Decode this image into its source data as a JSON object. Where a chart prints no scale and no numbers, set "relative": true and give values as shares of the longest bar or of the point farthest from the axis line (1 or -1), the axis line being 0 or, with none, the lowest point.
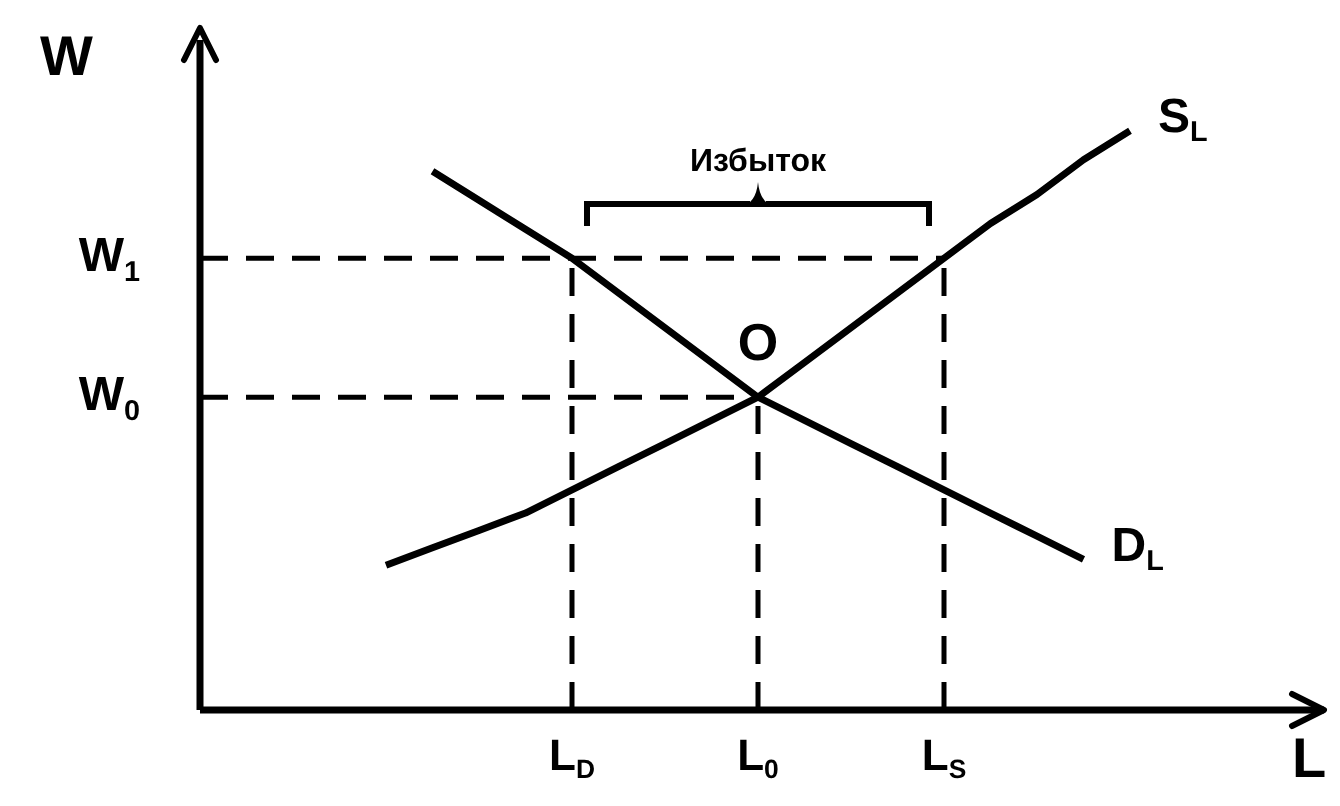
{
  "chart_data": {
    "type": "line",
    "relative": true,
    "xlabel": "L",
    "ylabel": "W",
    "legend": false,
    "grid": false,
    "marker": "none",
    "line_style": "solid",
    "categories": [
      null,
      null,
      null,
      null,
      null,
      null,
      null,
      null,
      "L$_{D}$",
      null,
      null,
      null,
      "L$_{0}$",
      null,
      null,
      null,
      "L$_{S}$",
      null,
      null,
      null,
      null,
      null,
      null,
      null,
      null
    ],
    "series": [
      {
        "name": "S$_{L}$",
        "color": "#000000",
        "values": [
          null,
          null,
          null,
          null,
          0.25,
          0.28,
          0.31,
          0.34,
          0.38,
          0.42,
          0.46,
          0.5,
          0.54,
          0.6,
          0.66,
          0.72,
          0.78,
          0.84,
          0.89,
          0.95,
          1,
          null,
          null,
          null,
          null
        ]
      },
      {
        "name": "D$_{L}$",
        "color": "#000000",
        "values": [
          null,
          null,
          null,
          null,
          null,
          0.93,
          0.88,
          0.83,
          0.78,
          0.72,
          0.66,
          0.6,
          0.54,
          0.5,
          0.46,
          0.42,
          0.38,
          0.34,
          0.3,
          0.26,
          null,
          null,
          null,
          null,
          null
        ]
      }
    ],
    "ref_lines": [
      {
        "axis": "y",
        "value": 0.78,
        "label": "W$_{1}$",
        "line_style": "dashed"
      },
      {
        "axis": "y",
        "value": 0.54,
        "label": "W$_{0}$",
        "line_style": "dashed"
      },
      {
        "axis": "x",
        "value": "L$_{D}$",
        "line_style": "dashed"
      },
      {
        "axis": "x",
        "value": "L$_{0}$",
        "line_style": "dashed"
      },
      {
        "axis": "x",
        "value": "L$_{S}$",
        "line_style": "dashed"
      }
    ],
    "annotations": [
      {
        "text": "Избыток",
        "x": "L$_{0}$",
        "y": 0.78
      },
      {
        "text": "O",
        "x": "L$_{0}$",
        "y": 0.54
      }
    ]
  }
}
